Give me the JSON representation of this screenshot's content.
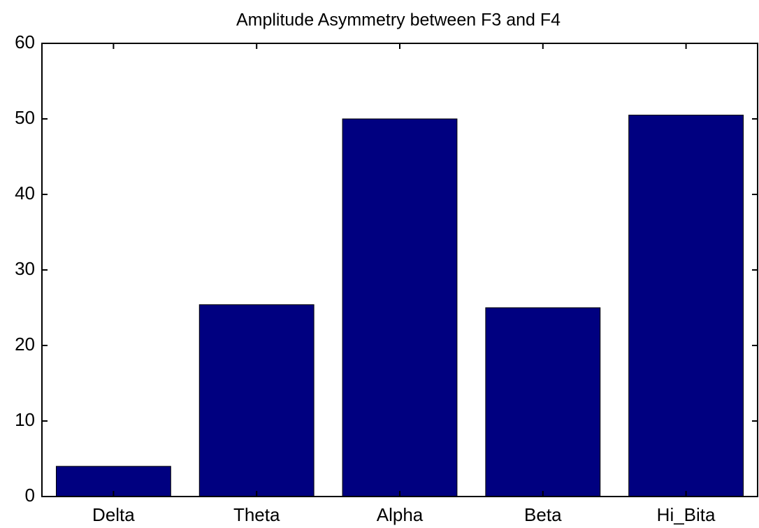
{
  "chart_data": {
    "type": "bar",
    "title": "Amplitude Asymmetry between F3 and  F4",
    "categories": [
      "Delta",
      "Theta",
      "Alpha",
      "Beta",
      "Hi_Bita"
    ],
    "values": [
      4,
      25.4,
      50,
      25,
      50.5
    ],
    "color": "#000080",
    "ylim": [
      0,
      60
    ],
    "yticks": [
      0,
      10,
      20,
      30,
      40,
      50,
      60
    ],
    "grid": false
  }
}
